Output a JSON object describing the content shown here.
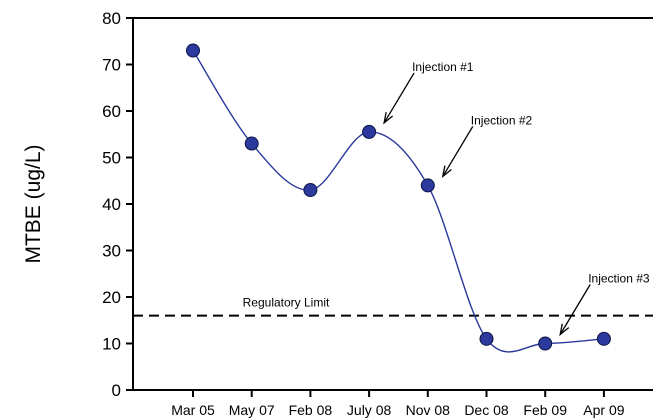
{
  "chart_data": {
    "type": "line",
    "title": "",
    "xlabel": "",
    "ylabel": "MTBE (ug/L)",
    "categories": [
      "Mar 05",
      "May 07",
      "Feb 08",
      "July 08",
      "Nov 08",
      "Dec 08",
      "Feb 09",
      "Apr 09"
    ],
    "series": [
      {
        "values": [
          73,
          53,
          43,
          55.5,
          44,
          11,
          10,
          11
        ],
        "color": "#2b3a9c"
      }
    ],
    "ylim": [
      0,
      80
    ],
    "yticks": [
      0,
      10,
      20,
      30,
      40,
      50,
      60,
      70,
      80
    ],
    "reference_line": {
      "label": "Regulatory Limit",
      "value": 16,
      "style": "dashed"
    },
    "annotations": [
      {
        "label": "Injection #1",
        "category": "July 08"
      },
      {
        "label": "Injection #2",
        "category": "Nov 08"
      },
      {
        "label": "Injection #3",
        "category": "Feb 09"
      }
    ],
    "grid": false
  }
}
